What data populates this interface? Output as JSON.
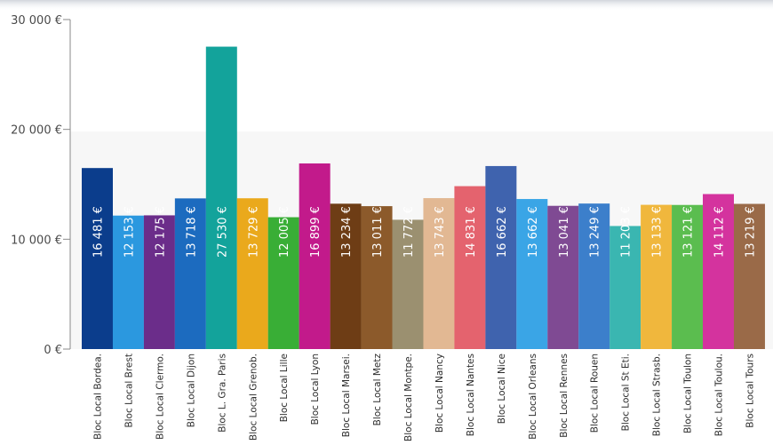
{
  "chart_data": {
    "type": "bar",
    "title": "",
    "xlabel": "",
    "ylabel": "",
    "ylim": [
      0,
      30000
    ],
    "y_ticks": [
      {
        "value": 0,
        "label": "0 €"
      },
      {
        "value": 10000,
        "label": "10 000 €"
      },
      {
        "value": 20000,
        "label": "20 000 €"
      },
      {
        "value": 30000,
        "label": "30 000 €"
      }
    ],
    "grid": false,
    "categories": [
      "Bloc Local Bordea.",
      "Bloc Local Brest",
      "Bloc Local Clermo.",
      "Bloc Local Dijon",
      "Bloc L. Gra. Paris",
      "Bloc Local Grenob.",
      "Bloc Local Lille",
      "Bloc Local Lyon",
      "Bloc Local Marsei.",
      "Bloc Local Metz",
      "Bloc Local Montpe.",
      "Bloc Local Nancy",
      "Bloc Local Nantes",
      "Bloc Local Nice",
      "Bloc Local Orleans",
      "Bloc Local Rennes",
      "Bloc Local Rouen",
      "Bloc Local St Eti.",
      "Bloc Local Strasb.",
      "Bloc Local Toulon",
      "Bloc Local Toulou.",
      "Bloc Local Tours"
    ],
    "values": [
      16481,
      12153,
      12175,
      13718,
      27530,
      13729,
      12005,
      16899,
      13234,
      13011,
      11772,
      13743,
      14831,
      16662,
      13662,
      13041,
      13249,
      11203,
      13133,
      13121,
      14112,
      13219
    ],
    "value_labels": [
      "16 481 €",
      "12 153 €",
      "12 175 €",
      "13 718 €",
      "27 530 €",
      "13 729 €",
      "12 005 €",
      "16 899 €",
      "13 234 €",
      "13 011 €",
      "11 772 €",
      "13 743 €",
      "14 831 €",
      "16 662 €",
      "13 662 €",
      "13 041 €",
      "13 249 €",
      "11 203 €",
      "13 133 €",
      "13 121 €",
      "14 112 €",
      "13 219 €"
    ],
    "colors": [
      "#0b3d8c",
      "#2b98df",
      "#6b2d8a",
      "#1c6bbf",
      "#13a39b",
      "#eaa91c",
      "#39ae36",
      "#c21a8b",
      "#6e3d15",
      "#8c5a2b",
      "#9b9070",
      "#e2b893",
      "#e4636e",
      "#3f63ae",
      "#3aa5e6",
      "#7f4a93",
      "#3c7fcb",
      "#3ab6b1",
      "#f0b73d",
      "#5bbd4f",
      "#d4339e",
      "#9a6a48"
    ]
  }
}
